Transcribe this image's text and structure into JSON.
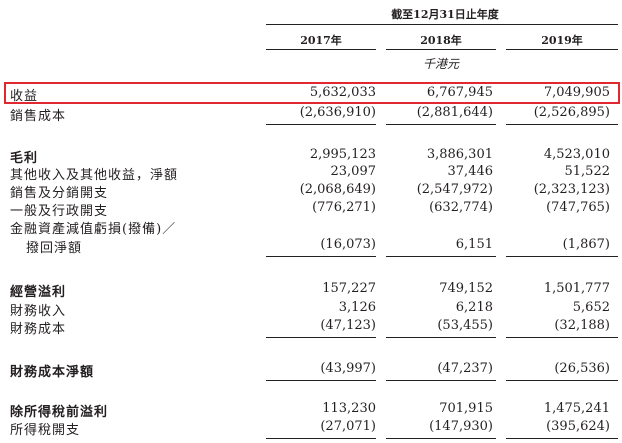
{
  "header": {
    "period": "截至12月31日止年度",
    "years": [
      "2017年",
      "2018年",
      "2019年"
    ],
    "unit": "千港元"
  },
  "rows": [
    {
      "label": "收益",
      "values": [
        "5,632,033",
        "6,767,945",
        "7,049,905"
      ]
    },
    {
      "label": "銷售成本",
      "values": [
        "(2,636,910)",
        "(2,881,644)",
        "(2,526,895)"
      ]
    },
    {
      "label": "毛利",
      "values": [
        "2,995,123",
        "3,886,301",
        "4,523,010"
      ]
    },
    {
      "label": "其他收入及其他收益，淨額",
      "values": [
        "23,097",
        "37,446",
        "51,522"
      ]
    },
    {
      "label": "銷售及分銷開支",
      "values": [
        "(2,068,649)",
        "(2,547,972)",
        "(2,323,123)"
      ]
    },
    {
      "label": "一般及行政開支",
      "values": [
        "(776,271)",
        "(632,774)",
        "(747,765)"
      ]
    },
    {
      "label": "金融資產減值虧損(撥備)／",
      "label2": "撥回淨額",
      "values": [
        "(16,073)",
        "6,151",
        "(1,867)"
      ]
    },
    {
      "label": "經營溢利",
      "values": [
        "157,227",
        "749,152",
        "1,501,777"
      ]
    },
    {
      "label": "財務收入",
      "values": [
        "3,126",
        "6,218",
        "5,652"
      ]
    },
    {
      "label": "財務成本",
      "values": [
        "(47,123)",
        "(53,455)",
        "(32,188)"
      ]
    },
    {
      "label": "財務成本淨額",
      "values": [
        "(43,997)",
        "(47,237)",
        "(26,536)"
      ]
    },
    {
      "label": "除所得稅前溢利",
      "values": [
        "113,230",
        "701,915",
        "1,475,241"
      ]
    },
    {
      "label": "所得稅開支",
      "values": [
        "(27,071)",
        "(147,930)",
        "(395,624)"
      ]
    }
  ],
  "highlight_color": "#e0282e"
}
